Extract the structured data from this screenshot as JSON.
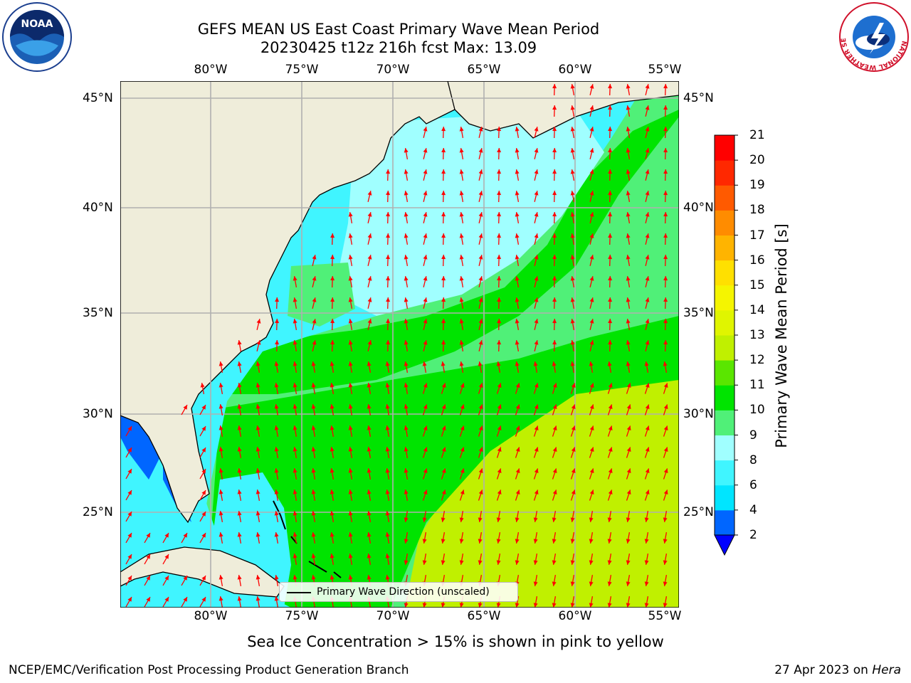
{
  "title": {
    "line1": "GEFS MEAN US East Coast Primary Wave Mean Period",
    "line2": "20230425 t12z 216h fcst   Max: 13.09"
  },
  "map": {
    "lon_labels": [
      "80°W",
      "75°W",
      "70°W",
      "65°W",
      "60°W",
      "55°W"
    ],
    "lat_labels": [
      "45°N",
      "40°N",
      "35°N",
      "30°N",
      "25°N"
    ],
    "colors": {
      "land": "#efedda",
      "grid": "#b0b0b0",
      "arrow": "#ff0000",
      "coast": "#000000"
    }
  },
  "legend": {
    "label": "Primary Wave Direction (unscaled)"
  },
  "colorbar": {
    "title": "Primary Wave Mean Period [s]",
    "ticks": [
      "2",
      "4",
      "6",
      "8",
      "9",
      "10",
      "11",
      "12",
      "13",
      "14",
      "15",
      "16",
      "17",
      "18",
      "19",
      "20",
      "21"
    ],
    "colors": [
      "#0066ff",
      "#00e5ff",
      "#40f5ff",
      "#a0ffff",
      "#50f078",
      "#00e400",
      "#5ae600",
      "#c0f000",
      "#e0f500",
      "#f5f500",
      "#ffe000",
      "#ffb400",
      "#ff8c00",
      "#ff5a00",
      "#ff2800",
      "#ff0000"
    ],
    "under_color": "#0000ff"
  },
  "note": "Sea Ice Concentration > 15% is shown in pink to yellow",
  "footer": {
    "left": "NCEP/EMC/Verification Post Processing Product Generation Branch",
    "date": "27 Apr 2023 on ",
    "host": "Hera"
  },
  "logos": {
    "noaa": {
      "text": "NOAA"
    },
    "nws": {
      "text": "NATIONAL WEATHER SERVICE"
    }
  }
}
